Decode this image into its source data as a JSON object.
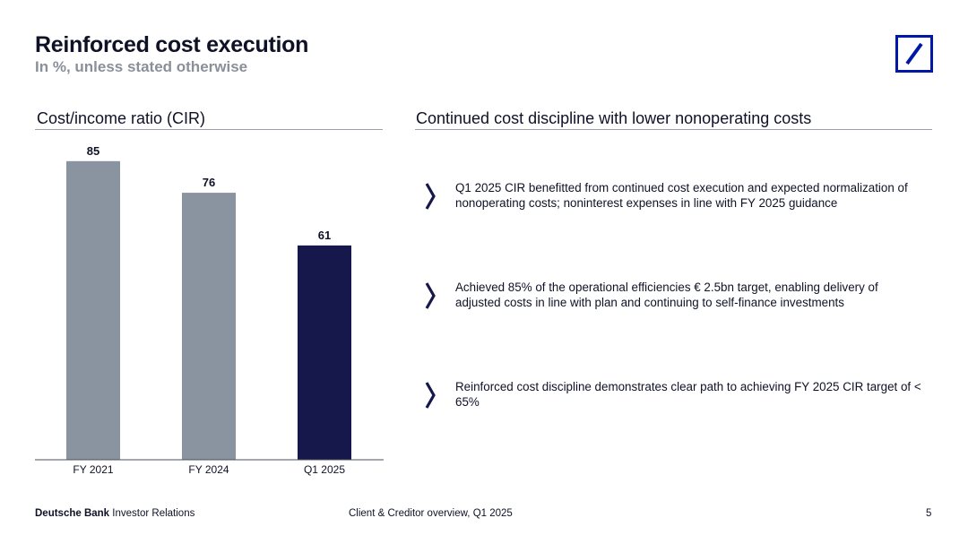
{
  "header": {
    "title": "Reinforced cost execution",
    "subtitle": "In %, unless stated otherwise"
  },
  "left_section": {
    "heading": "Cost/income ratio (CIR)"
  },
  "right_section": {
    "heading": "Continued cost discipline with lower nonoperating costs",
    "bullets": [
      "Q1 2025 CIR benefitted from continued cost execution and expected normalization of nonoperating costs; noninterest expenses in line with FY 2025 guidance",
      "Achieved 85% of the operational efficiencies € 2.5bn target, enabling delivery of adjusted costs in line with plan and continuing to self-finance investments",
      "Reinforced cost discipline demonstrates clear path to achieving FY 2025 CIR target of < 65%"
    ]
  },
  "chart_data": {
    "type": "bar",
    "title": "Cost/income ratio (CIR)",
    "categories": [
      "FY 2021",
      "FY 2024",
      "Q1 2025"
    ],
    "values": [
      85,
      76,
      61
    ],
    "data_labels": [
      "85",
      "76",
      "61"
    ],
    "xlabel": "",
    "ylabel": "",
    "ylim": [
      0,
      90
    ],
    "grid": false,
    "legend": "none",
    "colors": [
      "#8994a0",
      "#8994a0",
      "#16174a"
    ]
  },
  "footer": {
    "brand_bold": "Deutsche Bank",
    "brand_rest": "Investor Relations",
    "center": "Client & Creditor overview, Q1 2025",
    "page": "5"
  },
  "colors": {
    "brand_blue": "#0018a8",
    "navy": "#16174a",
    "grey_bar": "#8994a0"
  }
}
